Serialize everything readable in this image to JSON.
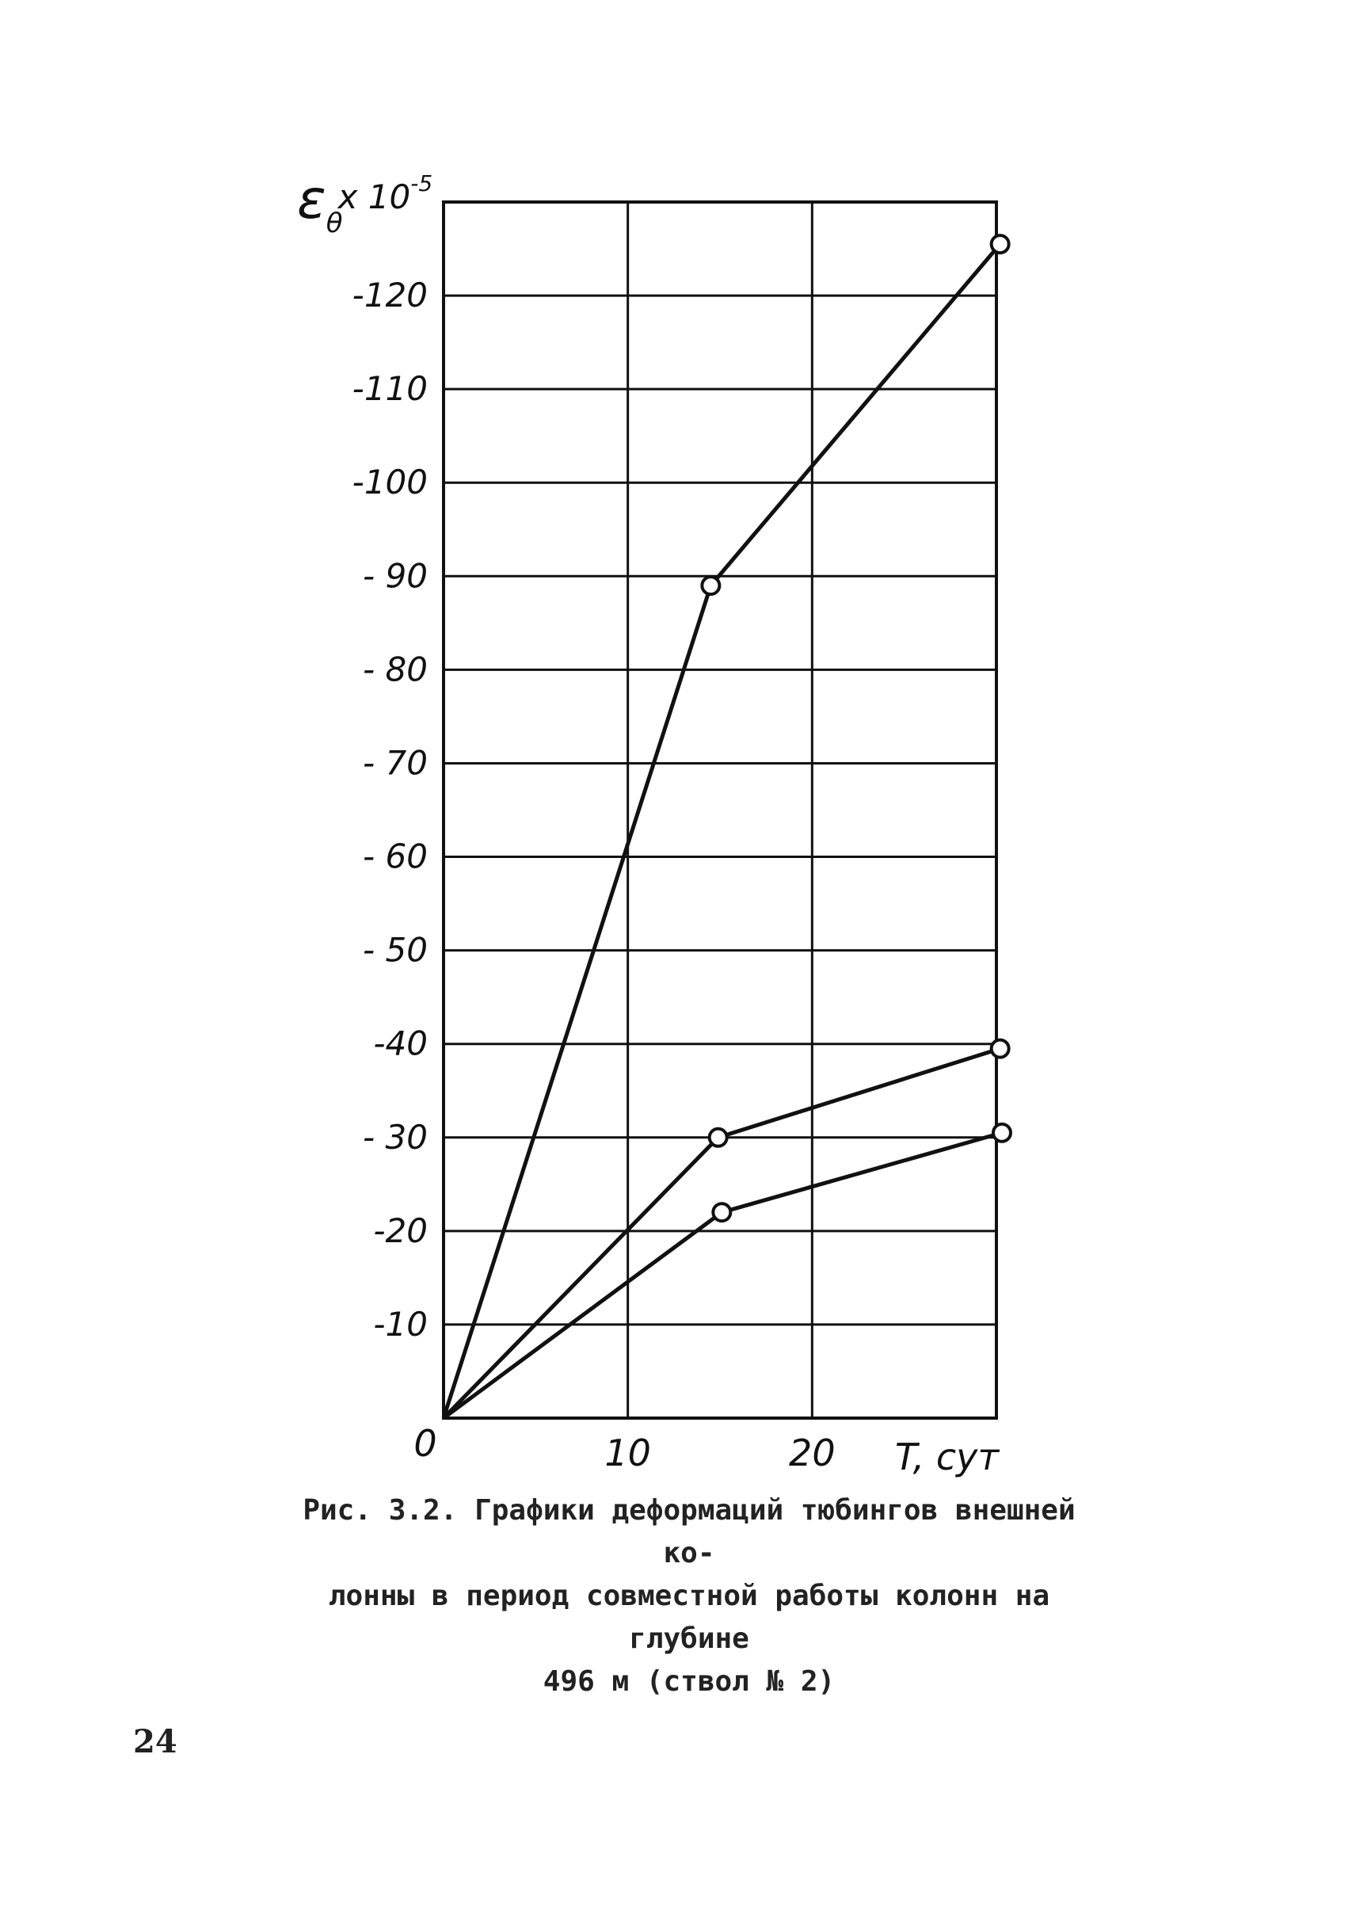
{
  "chart_data": {
    "type": "line",
    "ylabel_symbol": "ε",
    "ylabel_subscript": "θ",
    "ylabel_multiplier": "x 10",
    "ylabel_exponent": "-5",
    "xlabel": "T, сут",
    "x_origin_label": "0",
    "xlim": [
      0,
      30
    ],
    "ylim": [
      0,
      -130
    ],
    "x_ticks": [
      {
        "value": 10,
        "label": "10"
      },
      {
        "value": 20,
        "label": "20"
      }
    ],
    "y_ticks": [
      {
        "value": -10,
        "label": "-10"
      },
      {
        "value": -20,
        "label": "-20"
      },
      {
        "value": -30,
        "label": "- 30"
      },
      {
        "value": -40,
        "label": "-40"
      },
      {
        "value": -50,
        "label": "- 50"
      },
      {
        "value": -60,
        "label": "- 60"
      },
      {
        "value": -70,
        "label": "- 70"
      },
      {
        "value": -80,
        "label": "- 80"
      },
      {
        "value": -90,
        "label": "- 90"
      },
      {
        "value": -100,
        "label": "-100"
      },
      {
        "value": -110,
        "label": "-110"
      },
      {
        "value": -120,
        "label": "-120"
      }
    ],
    "grid": true,
    "series": [
      {
        "points": [
          [
            0,
            0
          ],
          [
            14.5,
            -89
          ],
          [
            30.2,
            -125.5
          ]
        ]
      },
      {
        "points": [
          [
            0,
            0
          ],
          [
            14.9,
            -30
          ],
          [
            30.2,
            -39.5
          ]
        ]
      },
      {
        "points": [
          [
            0,
            0
          ],
          [
            15.1,
            -22
          ],
          [
            30.3,
            -30.5
          ]
        ]
      }
    ]
  },
  "caption": {
    "line1": "Рис. 3.2. Графики деформаций тюбингов внешней ко-",
    "line2": "лонны в период совместной работы колонн на глубине",
    "line3": "496 м (ствол № 2)"
  },
  "page_number": "24"
}
